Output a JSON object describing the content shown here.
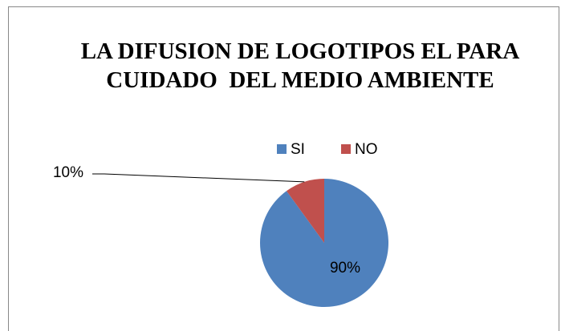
{
  "chart_data": {
    "type": "pie",
    "title": "LA DIFUSION DE LOGOTIPOS EL PARA CUIDADO  DEL MEDIO AMBIENTE",
    "categories": [
      "SI",
      "NO"
    ],
    "values": [
      90,
      10
    ],
    "value_labels": [
      "90%",
      "10%"
    ],
    "colors": [
      "#4f81bd",
      "#c0504d"
    ],
    "legend": "top"
  }
}
